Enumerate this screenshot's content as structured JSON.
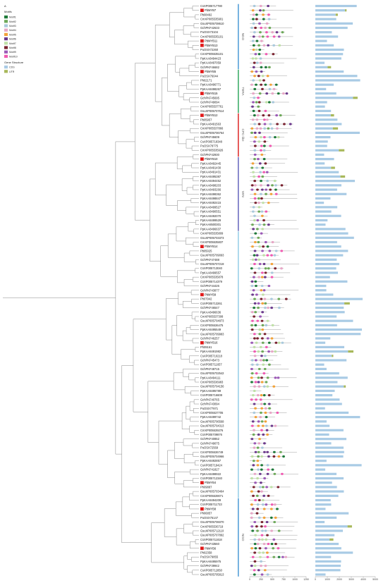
{
  "figure_label": "A",
  "legend": {
    "motifs_title": "Motifs",
    "motifs": [
      {
        "name": "Motif1",
        "color": "#1f7a3a"
      },
      {
        "name": "Motif2",
        "color": "#6ea95a"
      },
      {
        "name": "Motif3",
        "color": "#a9c9dc"
      },
      {
        "name": "Motif4",
        "color": "#e7a7c6"
      },
      {
        "name": "Motif5",
        "color": "#f2a23a"
      },
      {
        "name": "Motif6",
        "color": "#6c3a8c"
      },
      {
        "name": "Motif7",
        "color": "#bfe0a6"
      },
      {
        "name": "Motif8",
        "color": "#7a2330"
      },
      {
        "name": "Motif9",
        "color": "#9b59b6"
      },
      {
        "name": "Motif10",
        "color": "#f05ab1"
      }
    ],
    "gene_title": "Gene Structure",
    "gene": [
      {
        "name": "CDS",
        "color": "#a9cbe5"
      },
      {
        "name": "UTR",
        "color": "#a8b85a"
      }
    ]
  },
  "subgroups": [
    {
      "label": "NGO",
      "color": "#55a0d8"
    },
    {
      "label": "TBRA",
      "color": "#3fae6a"
    },
    {
      "label": "CPC-like",
      "color": "#e03333"
    },
    {
      "label": "WIN",
      "color": "#6e6ec0"
    },
    {
      "label": "",
      "color": "#9ad0e8"
    }
  ],
  "motif_axis_ticks": [
    "0",
    "250",
    "500",
    "750",
    "1000",
    "1250"
  ],
  "gene_axis_ticks": [
    "0",
    "1000",
    "2000",
    "3000",
    "4000",
    "5000"
  ],
  "leaves": [
    "CsXP005717780",
    "PbMYB7",
    "Pb08492",
    "CmXP005535901",
    "GsuXP005708610",
    "GchPKF42633",
    "PuOSX73104",
    "CmXP005535101",
    "PbMYB11",
    "PbMYB13",
    "PuOSX72260",
    "CmXP005535101",
    "PpKAA8494423",
    "PpKAA8497059",
    "GchPKF46682",
    "PbMYB5",
    "PuOSX76044",
    "Ph02171",
    "PpKAA8496771",
    "PpKAA8498267",
    "PbMYB15",
    "GchPKF45695",
    "GchPKF49094",
    "CmXP005537761",
    "GsuXP005707614",
    "PbMYB12",
    "Pb05957",
    "PpKAA8491563",
    "CmXP005537866",
    "GsuXP005706764",
    "GchPKF45609",
    "CsXP005718348",
    "PuOSX78775",
    "CmXP005535926",
    "GchPKF42930",
    "PbMYB10",
    "PpKAA8492445",
    "PpKAA8491430",
    "PpKAA8491431",
    "PpKAA8495387",
    "PpKAA8494452",
    "PpKAA8498203",
    "PpKAA8493266",
    "PpKAA8498362",
    "PpKAA8498847",
    "PpKAA8492415",
    "PpKAA8499527",
    "PpKAA8490551",
    "PpKAA8492070",
    "PpKAA8499529",
    "PpKAA8500301",
    "PpKAA8496637",
    "CmXP005535809",
    "GsuXP005703373",
    "CmXP005535837",
    "PbMYB14",
    "Pb05025",
    "GsuXP005709093",
    "GchPKF47488",
    "GsuXP005707219",
    "CsXP005713040",
    "PpKAA8499557",
    "CmXP005535878",
    "CsXP005714379",
    "GchPKF44426",
    "GchPKF43877",
    "PbMYB9",
    "Ph07942",
    "CsXP005713261",
    "GchPKF46547",
    "PpKAA8496636",
    "CmXP005537308",
    "GsuXP005704873",
    "CmXP005536475",
    "PpKAA8495549",
    "GsuXP005709983",
    "GchPKF46257",
    "PbMYB16",
    "Ph09161",
    "PpKAA8491982",
    "CsXP005710218",
    "GchPKF45473",
    "CsXP005711657",
    "GchPKF48715",
    "GsuXP005702542",
    "PpKAA8494111",
    "CmXP005536983",
    "GsuXP005704156",
    "PpKAA8495789",
    "CsXP005716608",
    "GchPKF40765",
    "GchPKF43094",
    "PuOSX77871",
    "CmXP005537705",
    "PpKAA8499742",
    "GsuXP005706568",
    "GsuXP005704313",
    "CmXP005539276",
    "CsXP005709876",
    "GchPKF40852",
    "GchPKF49075",
    "PuOSX72569",
    "CmXP005536749",
    "GsuXP005704966",
    "PpKAA8492857",
    "CsXP005719424",
    "GchPKF41827",
    "PpKAA8498922",
    "CsXP005712340",
    "PbMYB4",
    "Ph09887",
    "GsuXP005703464",
    "CmXP005539071",
    "PpKAA8494209",
    "CsXP005711723",
    "PbMYB8",
    "Ph06857",
    "PuOSX75147",
    "GsuXP005706070",
    "CmXP005536719",
    "GsuXP005712110",
    "GsuXP005707892",
    "CsXP005711818",
    "GchPKF43560",
    "PbMYB6",
    "Ph02358",
    "PuOSX79855",
    "PpKAA8495975",
    "GchPKF39942",
    "CsXP005712850",
    "GsuXP005705813"
  ]
}
